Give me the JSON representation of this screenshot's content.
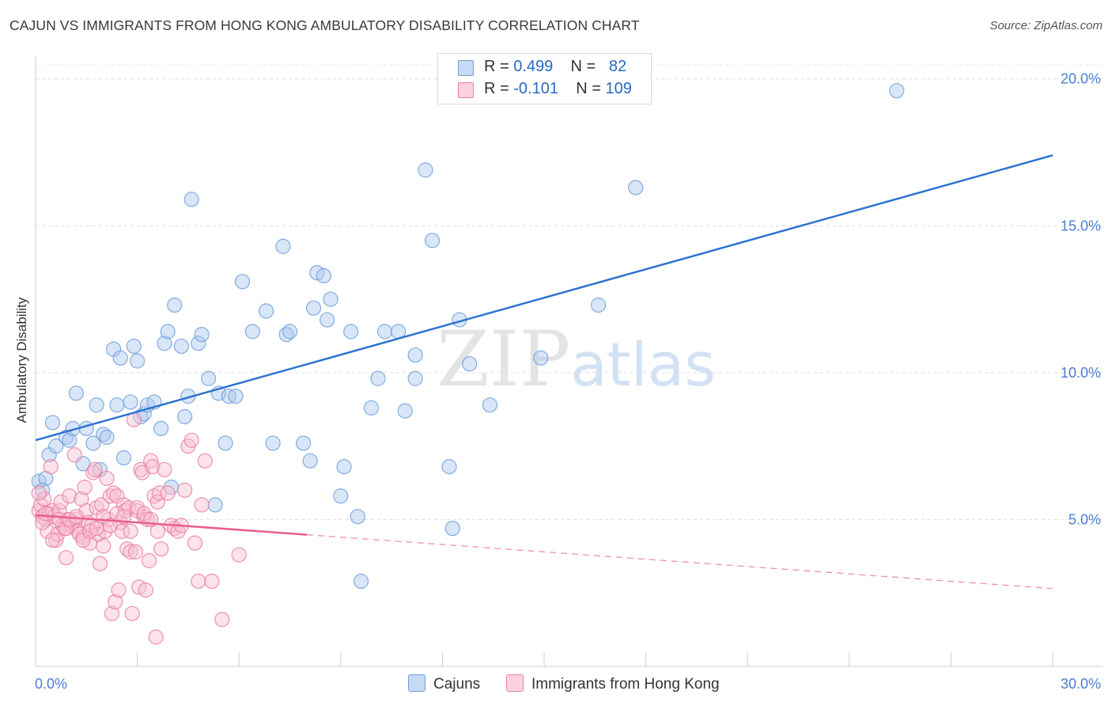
{
  "header": {
    "title": "CAJUN VS IMMIGRANTS FROM HONG KONG AMBULATORY DISABILITY CORRELATION CHART",
    "source": "Source: ZipAtlas.com"
  },
  "watermark": {
    "zip": "ZIP",
    "atlas": "atlas"
  },
  "legend": {
    "rows": [
      {
        "r_label": "R =",
        "r_value": "0.499",
        "n_label": "N =",
        "n_value": "82",
        "color": "#aac8f0",
        "border": "#6f9fd8"
      },
      {
        "r_label": "R =",
        "r_value": "-0.101",
        "n_label": "N =",
        "n_value": "109",
        "color": "#f8bfd0",
        "border": "#e8809f"
      }
    ]
  },
  "bottom_legend": {
    "items": [
      {
        "label": "Cajuns",
        "color": "#aac8f0",
        "border": "#6f9fd8"
      },
      {
        "label": "Immigrants from Hong Kong",
        "color": "#f8bfd0",
        "border": "#e8809f"
      }
    ]
  },
  "chart_data": {
    "type": "scatter",
    "title": "CAJUN VS IMMIGRANTS FROM HONG KONG AMBULATORY DISABILITY CORRELATION CHART",
    "xlabel": "",
    "ylabel": "Ambulatory Disability",
    "xlim": [
      0,
      30
    ],
    "ylim": [
      0,
      20.8
    ],
    "x_tick_labels": [
      "0.0%",
      "30.0%"
    ],
    "y_tick_labels": [
      "5.0%",
      "10.0%",
      "15.0%",
      "20.0%"
    ],
    "y_ticks": [
      5,
      10,
      15,
      20
    ],
    "grid": true,
    "legend_position": "top-center",
    "series": [
      {
        "name": "Cajuns",
        "color": "#6f9fd8",
        "fill": "#aac8f0",
        "trend": {
          "x": [
            0,
            30
          ],
          "y": [
            7.7,
            17.4
          ],
          "dashed_from": null
        },
        "points": [
          [
            0.1,
            6.3
          ],
          [
            0.3,
            6.4
          ],
          [
            0.4,
            7.2
          ],
          [
            0.5,
            8.3
          ],
          [
            0.6,
            7.5
          ],
          [
            0.9,
            7.8
          ],
          [
            1.0,
            7.7
          ],
          [
            1.1,
            8.1
          ],
          [
            1.2,
            9.3
          ],
          [
            1.4,
            6.9
          ],
          [
            1.5,
            8.1
          ],
          [
            1.7,
            7.6
          ],
          [
            1.8,
            8.9
          ],
          [
            1.9,
            6.7
          ],
          [
            2.0,
            7.9
          ],
          [
            2.1,
            7.8
          ],
          [
            2.3,
            10.8
          ],
          [
            2.4,
            8.9
          ],
          [
            2.5,
            10.5
          ],
          [
            2.6,
            7.1
          ],
          [
            2.8,
            9.0
          ],
          [
            2.9,
            10.9
          ],
          [
            3.0,
            10.4
          ],
          [
            3.1,
            8.5
          ],
          [
            3.2,
            8.6
          ],
          [
            3.3,
            8.9
          ],
          [
            3.5,
            9.0
          ],
          [
            3.7,
            8.1
          ],
          [
            3.8,
            11.0
          ],
          [
            3.9,
            11.4
          ],
          [
            4.0,
            6.1
          ],
          [
            4.1,
            12.3
          ],
          [
            4.3,
            10.9
          ],
          [
            4.4,
            8.5
          ],
          [
            4.5,
            9.2
          ],
          [
            4.6,
            15.9
          ],
          [
            4.8,
            11.0
          ],
          [
            4.9,
            11.3
          ],
          [
            5.1,
            9.8
          ],
          [
            5.3,
            5.5
          ],
          [
            5.4,
            9.3
          ],
          [
            5.6,
            7.6
          ],
          [
            5.7,
            9.2
          ],
          [
            5.9,
            9.2
          ],
          [
            6.1,
            13.1
          ],
          [
            6.4,
            11.4
          ],
          [
            6.8,
            12.1
          ],
          [
            7.0,
            7.6
          ],
          [
            7.3,
            14.3
          ],
          [
            7.4,
            11.3
          ],
          [
            7.5,
            11.4
          ],
          [
            7.9,
            7.6
          ],
          [
            8.1,
            7.0
          ],
          [
            8.2,
            12.2
          ],
          [
            8.3,
            13.4
          ],
          [
            8.5,
            13.3
          ],
          [
            8.6,
            11.8
          ],
          [
            8.7,
            12.5
          ],
          [
            9.0,
            5.8
          ],
          [
            9.1,
            6.8
          ],
          [
            9.3,
            11.4
          ],
          [
            9.5,
            5.1
          ],
          [
            9.6,
            2.9
          ],
          [
            9.9,
            8.8
          ],
          [
            10.1,
            9.8
          ],
          [
            10.3,
            11.4
          ],
          [
            10.7,
            11.4
          ],
          [
            10.9,
            8.7
          ],
          [
            11.2,
            9.8
          ],
          [
            11.2,
            10.6
          ],
          [
            11.5,
            16.9
          ],
          [
            11.7,
            14.5
          ],
          [
            12.2,
            6.8
          ],
          [
            12.3,
            4.7
          ],
          [
            12.5,
            11.8
          ],
          [
            12.8,
            10.3
          ],
          [
            13.4,
            8.9
          ],
          [
            14.9,
            10.5
          ],
          [
            16.6,
            12.3
          ],
          [
            17.7,
            16.3
          ],
          [
            25.4,
            19.6
          ],
          [
            0.2,
            6.0
          ]
        ]
      },
      {
        "name": "Immigrants from Hong Kong",
        "color": "#e8809f",
        "fill": "#f8bfd0",
        "trend": {
          "x": [
            0,
            30
          ],
          "y": [
            5.15,
            2.65
          ],
          "solid_until": 8.0
        },
        "points": [
          [
            0.1,
            5.3
          ],
          [
            0.15,
            5.5
          ],
          [
            0.2,
            5.1
          ],
          [
            0.25,
            5.7
          ],
          [
            0.3,
            5.0
          ],
          [
            0.35,
            4.6
          ],
          [
            0.4,
            5.2
          ],
          [
            0.45,
            6.8
          ],
          [
            0.5,
            5.3
          ],
          [
            0.55,
            5.1
          ],
          [
            0.6,
            4.3
          ],
          [
            0.65,
            4.5
          ],
          [
            0.7,
            5.3
          ],
          [
            0.75,
            5.6
          ],
          [
            0.8,
            4.8
          ],
          [
            0.85,
            4.7
          ],
          [
            0.9,
            3.7
          ],
          [
            0.95,
            5.0
          ],
          [
            1.0,
            5.8
          ],
          [
            1.05,
            4.8
          ],
          [
            1.1,
            4.9
          ],
          [
            1.15,
            7.2
          ],
          [
            1.2,
            5.0
          ],
          [
            1.25,
            4.6
          ],
          [
            1.3,
            4.5
          ],
          [
            1.35,
            5.7
          ],
          [
            1.4,
            4.4
          ],
          [
            1.45,
            6.1
          ],
          [
            1.5,
            5.3
          ],
          [
            1.55,
            4.9
          ],
          [
            1.6,
            4.2
          ],
          [
            1.65,
            4.8
          ],
          [
            1.7,
            6.6
          ],
          [
            1.75,
            6.7
          ],
          [
            1.8,
            5.4
          ],
          [
            1.85,
            4.5
          ],
          [
            1.9,
            3.5
          ],
          [
            1.95,
            5.5
          ],
          [
            2.0,
            4.1
          ],
          [
            2.05,
            4.6
          ],
          [
            2.1,
            6.4
          ],
          [
            2.15,
            5.0
          ],
          [
            2.2,
            5.8
          ],
          [
            2.25,
            1.8
          ],
          [
            2.3,
            5.9
          ],
          [
            2.35,
            2.2
          ],
          [
            2.4,
            5.8
          ],
          [
            2.45,
            2.6
          ],
          [
            2.5,
            4.9
          ],
          [
            2.55,
            4.6
          ],
          [
            2.6,
            5.5
          ],
          [
            2.65,
            5.3
          ],
          [
            2.7,
            4.0
          ],
          [
            2.75,
            5.4
          ],
          [
            2.8,
            3.9
          ],
          [
            2.85,
            1.8
          ],
          [
            2.9,
            8.4
          ],
          [
            2.95,
            3.9
          ],
          [
            3.0,
            5.3
          ],
          [
            3.05,
            2.7
          ],
          [
            3.1,
            6.7
          ],
          [
            3.15,
            6.6
          ],
          [
            3.2,
            5.1
          ],
          [
            3.25,
            2.6
          ],
          [
            3.3,
            5.0
          ],
          [
            3.35,
            3.6
          ],
          [
            3.4,
            7.0
          ],
          [
            3.45,
            6.8
          ],
          [
            3.5,
            5.8
          ],
          [
            3.55,
            1.0
          ],
          [
            3.6,
            5.6
          ],
          [
            3.65,
            5.9
          ],
          [
            3.7,
            4.0
          ],
          [
            3.8,
            6.7
          ],
          [
            3.9,
            5.9
          ],
          [
            4.0,
            4.8
          ],
          [
            4.1,
            4.7
          ],
          [
            4.2,
            4.6
          ],
          [
            4.3,
            4.8
          ],
          [
            4.4,
            6.0
          ],
          [
            4.5,
            7.5
          ],
          [
            4.6,
            7.7
          ],
          [
            4.7,
            4.2
          ],
          [
            4.8,
            2.9
          ],
          [
            4.9,
            5.5
          ],
          [
            5.0,
            7.0
          ],
          [
            5.2,
            2.9
          ],
          [
            5.5,
            1.6
          ],
          [
            6.0,
            3.8
          ],
          [
            0.1,
            5.9
          ],
          [
            0.2,
            4.9
          ],
          [
            0.3,
            5.2
          ],
          [
            0.5,
            4.3
          ],
          [
            0.7,
            5.0
          ],
          [
            0.9,
            4.7
          ],
          [
            1.0,
            5.0
          ],
          [
            1.2,
            5.1
          ],
          [
            1.4,
            4.3
          ],
          [
            1.6,
            4.6
          ],
          [
            1.8,
            4.7
          ],
          [
            2.0,
            5.1
          ],
          [
            2.2,
            4.8
          ],
          [
            2.4,
            5.2
          ],
          [
            2.6,
            5.1
          ],
          [
            2.8,
            4.6
          ],
          [
            3.0,
            5.4
          ],
          [
            3.2,
            5.2
          ],
          [
            3.4,
            5.0
          ],
          [
            3.6,
            4.6
          ]
        ]
      }
    ]
  }
}
